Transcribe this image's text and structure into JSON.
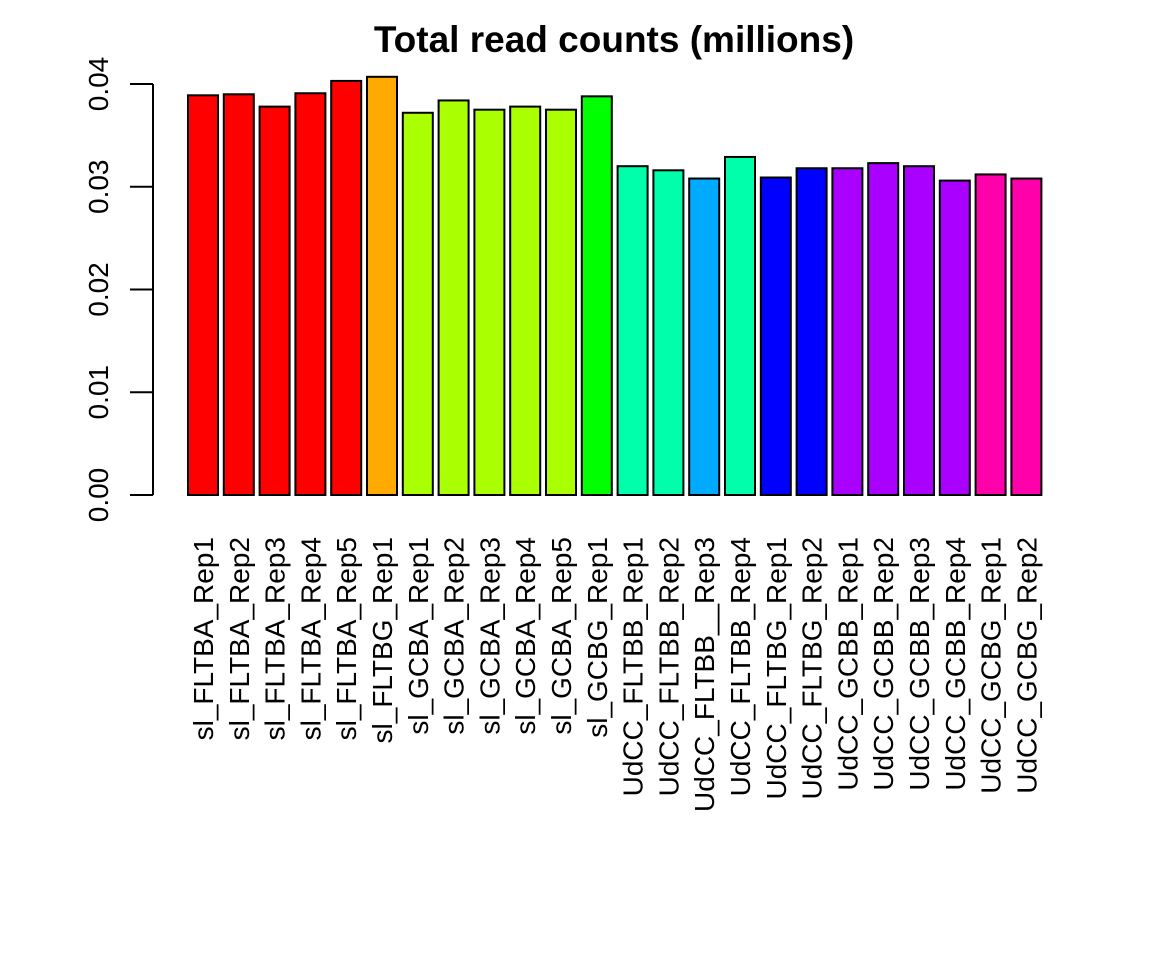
{
  "chart_data": {
    "type": "bar",
    "title": "Total read counts (millions)",
    "xlabel": "",
    "ylabel": "",
    "ylim": [
      0,
      0.04
    ],
    "yticks": [
      "0.00",
      "0.01",
      "0.02",
      "0.03",
      "0.04"
    ],
    "grid": false,
    "legend": "none",
    "categories": [
      "sl_FLTBA_Rep1",
      "sl_FLTBA_Rep2",
      "sl_FLTBA_Rep3",
      "sl_FLTBA_Rep4",
      "sl_FLTBA_Rep5",
      "sl_FLTBG_Rep1",
      "sl_GCBA_Rep1",
      "sl_GCBA_Rep2",
      "sl_GCBA_Rep3",
      "sl_GCBA_Rep4",
      "sl_GCBA_Rep5",
      "sl_GCBG_Rep1",
      "UdCC_FLTBB_Rep1",
      "UdCC_FLTBB_Rep2",
      "UdCC_FLTBB__Rep3",
      "UdCC_FLTBB_Rep4",
      "UdCC_FLTBG_Rep1",
      "UdCC_FLTBG_Rep2",
      "UdCC_GCBB_Rep1",
      "UdCC_GCBB_Rep2",
      "UdCC_GCBB_Rep3",
      "UdCC_GCBB_Rep4",
      "UdCC_GCBG_Rep1",
      "UdCC_GCBG_Rep2"
    ],
    "values": [
      0.0389,
      0.039,
      0.0378,
      0.0391,
      0.0403,
      0.0407,
      0.0372,
      0.0384,
      0.0375,
      0.0378,
      0.0375,
      0.0388,
      0.032,
      0.0316,
      0.0308,
      0.0329,
      0.0309,
      0.0318,
      0.0318,
      0.0323,
      0.032,
      0.0306,
      0.0312,
      0.0308
    ],
    "colors": [
      "#FF0000",
      "#FF0000",
      "#FF0000",
      "#FF0000",
      "#FF0000",
      "#FFAA00",
      "#AAFF00",
      "#AAFF00",
      "#AAFF00",
      "#AAFF00",
      "#AAFF00",
      "#00FF00",
      "#00FFAA",
      "#00FFAA",
      "#00AAFF",
      "#00FFAA",
      "#0000FF",
      "#0000FF",
      "#AA00FF",
      "#AA00FF",
      "#AA00FF",
      "#AA00FF",
      "#FF00AA",
      "#FF00AA"
    ]
  }
}
